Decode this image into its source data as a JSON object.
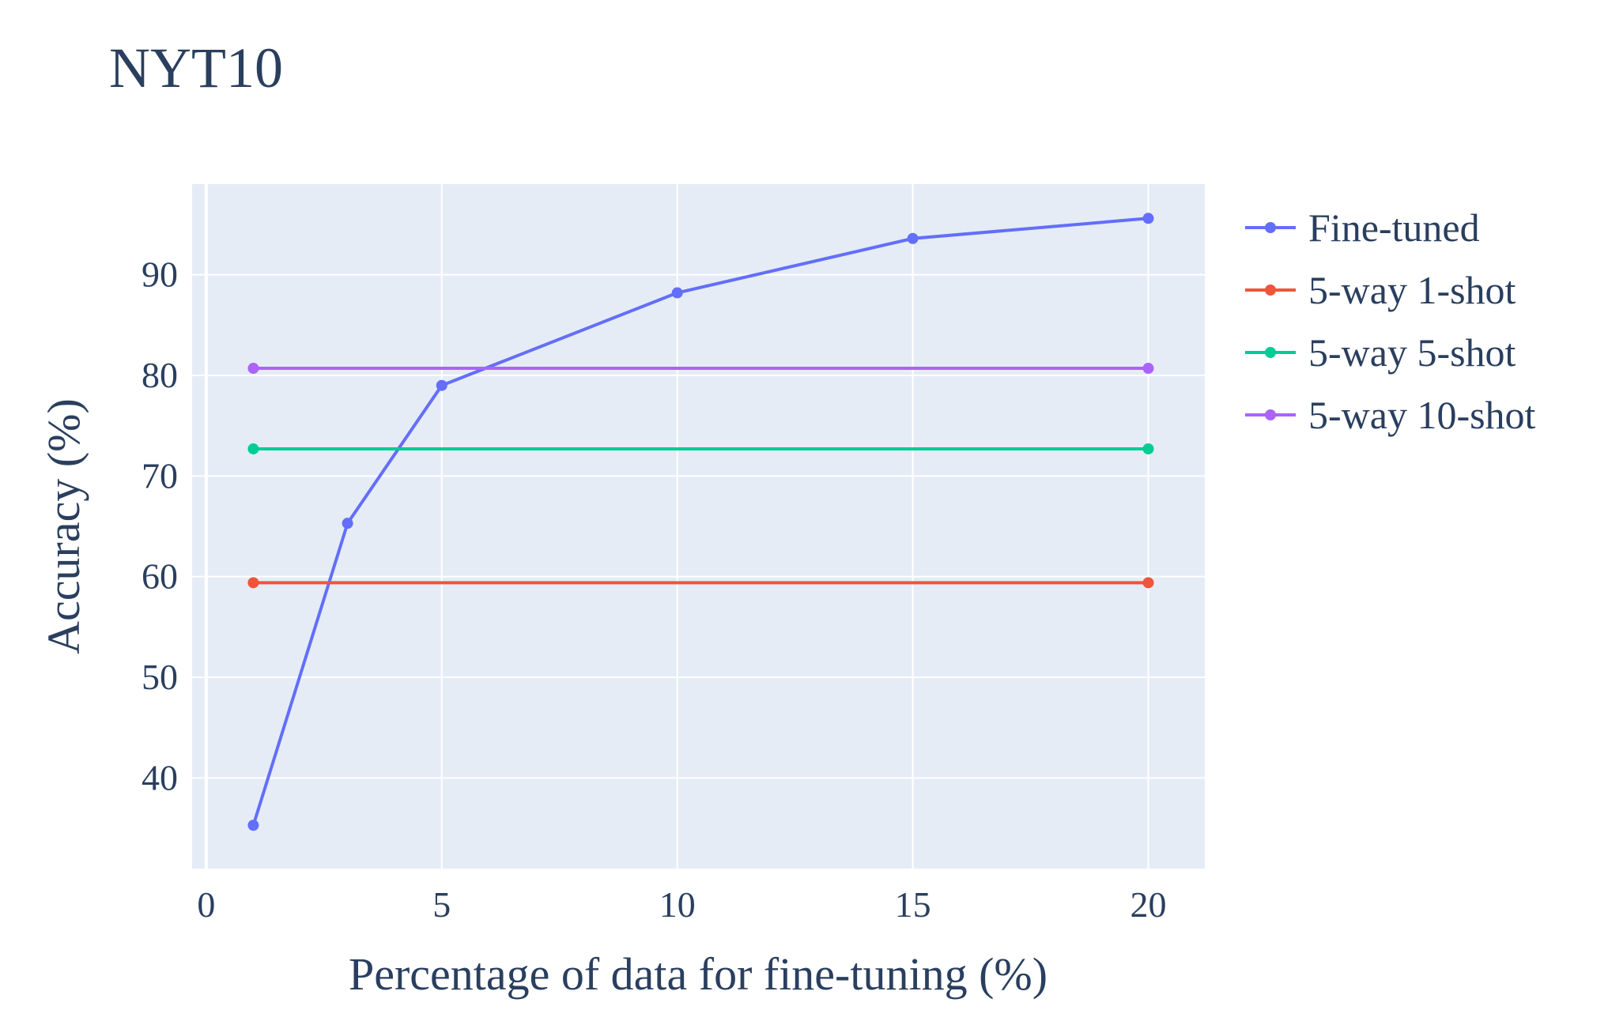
{
  "chart_data": {
    "type": "line",
    "title": "NYT10",
    "xlabel": "Percentage of data for fine-tuning (%)",
    "ylabel": "Accuracy (%)",
    "xlim": [
      -0.3,
      21.2
    ],
    "ylim": [
      31,
      99
    ],
    "x_ticks": [
      0,
      5,
      10,
      15,
      20
    ],
    "y_ticks": [
      40,
      50,
      60,
      70,
      80,
      90
    ],
    "grid": true,
    "legend_position": "right",
    "background": "#e5ecf6",
    "series": [
      {
        "name": "Fine-tuned",
        "color": "#636efa",
        "x": [
          1,
          3,
          5,
          10,
          15,
          20
        ],
        "y": [
          35.3,
          65.3,
          79.0,
          88.2,
          93.6,
          95.6
        ]
      },
      {
        "name": "5-way 1-shot",
        "color": "#ef553b",
        "x": [
          1,
          20
        ],
        "y": [
          59.4,
          59.4
        ]
      },
      {
        "name": "5-way 5-shot",
        "color": "#00cc96",
        "x": [
          1,
          20
        ],
        "y": [
          72.7,
          72.7
        ]
      },
      {
        "name": "5-way 10-shot",
        "color": "#ab63fa",
        "x": [
          1,
          20
        ],
        "y": [
          80.7,
          80.7
        ]
      }
    ]
  }
}
